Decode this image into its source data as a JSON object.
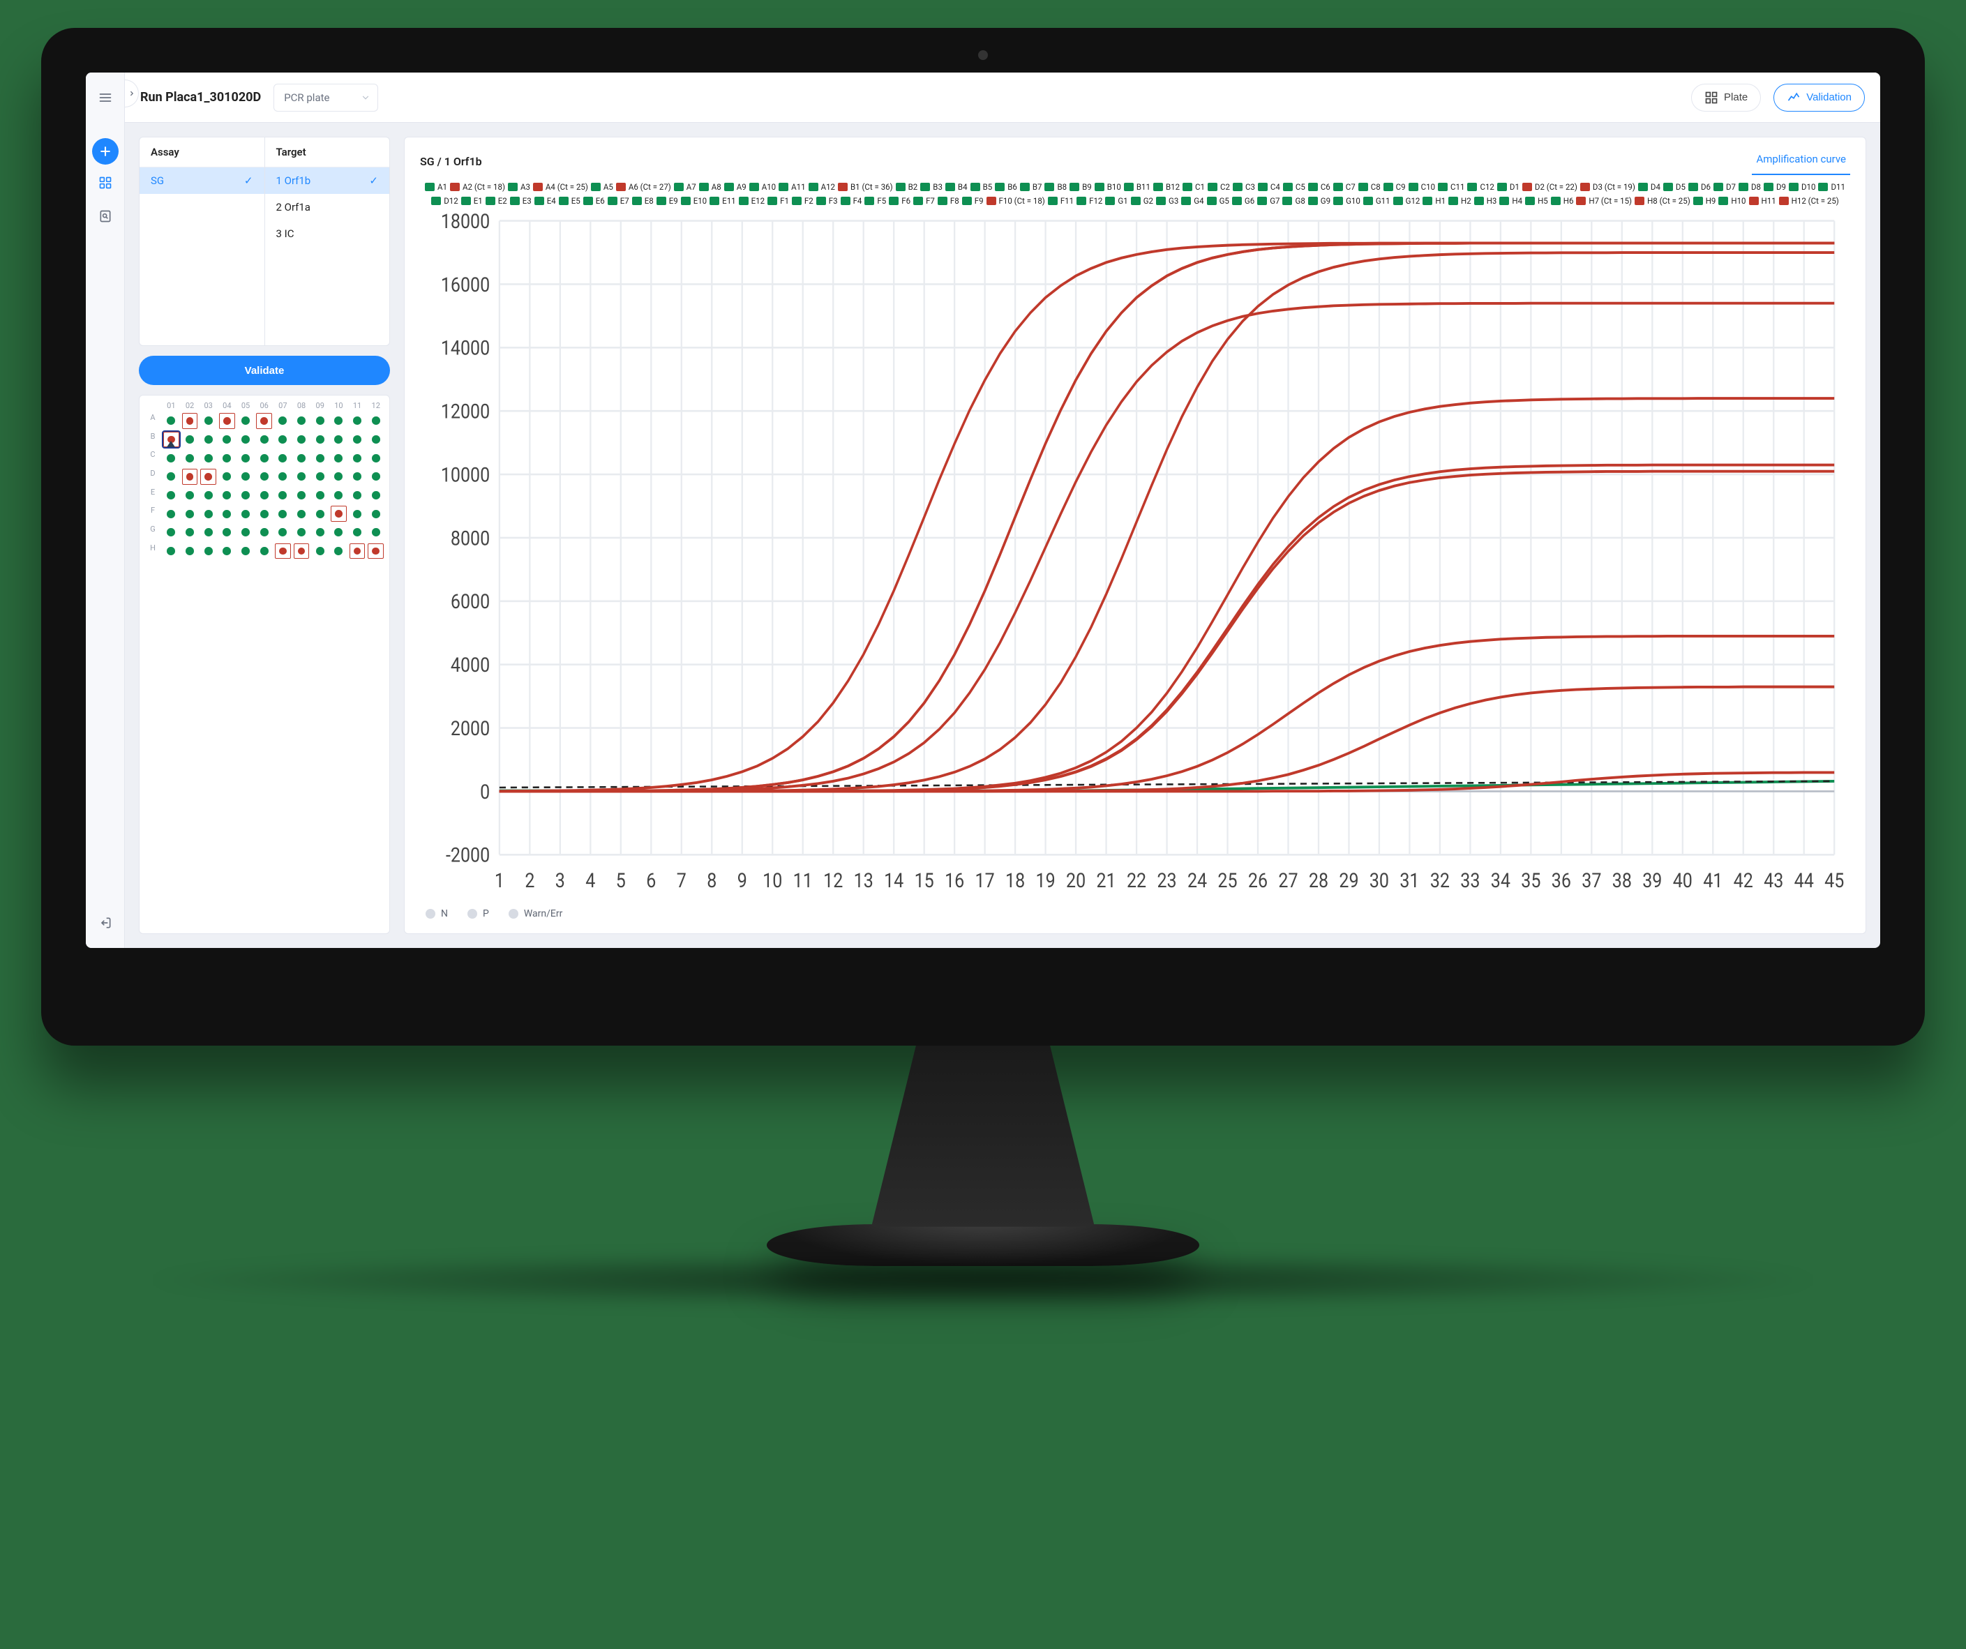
{
  "colors": {
    "accent": "#1f87ff",
    "positive": "#c0392b",
    "negative": "#0e8f52",
    "page_bg": "#eef0f5",
    "panel_border": "#e3e6ee",
    "grid_line": "#e8ebef",
    "text_muted": "#6b7280",
    "monitor_bezel": "#111111",
    "outer_bg": "#2a6b3d"
  },
  "header": {
    "title": "Run Placa1_301020D",
    "pcr_select_label": "PCR plate",
    "plate_btn": "Plate",
    "validation_btn": "Validation"
  },
  "sidebar": {
    "menu_icon": "hamburger",
    "items": [
      {
        "name": "add",
        "icon": "plus",
        "primary": true
      },
      {
        "name": "plates",
        "icon": "grid"
      },
      {
        "name": "search",
        "icon": "search-doc"
      }
    ],
    "bottom": {
      "name": "exit",
      "icon": "exit"
    }
  },
  "assay": {
    "header": "Assay",
    "options": [
      {
        "label": "SG",
        "selected": true
      }
    ]
  },
  "target": {
    "header": "Target",
    "options": [
      {
        "label": "1 Orf1b",
        "selected": true
      },
      {
        "label": "2 Orf1a",
        "selected": false
      },
      {
        "label": "3 IC",
        "selected": false
      }
    ]
  },
  "validate_btn": "Validate",
  "plate": {
    "rows": [
      "A",
      "B",
      "C",
      "D",
      "E",
      "F",
      "G",
      "H"
    ],
    "cols": [
      "01",
      "02",
      "03",
      "04",
      "05",
      "06",
      "07",
      "08",
      "09",
      "10",
      "11",
      "12"
    ],
    "positive_wells": [
      "A2",
      "A4",
      "A6",
      "B1",
      "D2",
      "D3",
      "F10",
      "H7",
      "H8",
      "H11",
      "H12"
    ],
    "warn_wells": [
      "B1"
    ],
    "selected_well": "B1"
  },
  "chart": {
    "title": "SG / 1 Orf1b",
    "tab_label": "Amplification curve",
    "ylim": [
      -2000,
      18000
    ],
    "ytick_step": 2000,
    "xlim": [
      1,
      45
    ],
    "xtick_step": 1,
    "bg": "#ffffff",
    "positives": [
      {
        "well": "A2",
        "ct": 18,
        "amp": 17300
      },
      {
        "well": "A4",
        "ct": 25,
        "amp": 10300
      },
      {
        "well": "A6",
        "ct": 27,
        "amp": 4900
      },
      {
        "well": "B1",
        "ct": 36,
        "amp": 600
      },
      {
        "well": "D2",
        "ct": 22,
        "amp": 17000
      },
      {
        "well": "D3",
        "ct": 19,
        "amp": 15400
      },
      {
        "well": "F10",
        "ct": 18,
        "amp": 17300
      },
      {
        "well": "H7",
        "ct": 15,
        "amp": 17300
      },
      {
        "well": "H8",
        "ct": 25,
        "amp": 12400
      },
      {
        "well": "H11",
        "ct": 30,
        "amp": 3300
      },
      {
        "well": "H12",
        "ct": 25,
        "amp": 10100
      }
    ]
  },
  "legend_wells": [
    {
      "id": "A1",
      "s": "n"
    },
    {
      "id": "A2",
      "s": "p",
      "ct": 18
    },
    {
      "id": "A3",
      "s": "n"
    },
    {
      "id": "A4",
      "s": "p",
      "ct": 25
    },
    {
      "id": "A5",
      "s": "n"
    },
    {
      "id": "A6",
      "s": "p",
      "ct": 27
    },
    {
      "id": "A7",
      "s": "n"
    },
    {
      "id": "A8",
      "s": "n"
    },
    {
      "id": "A9",
      "s": "n"
    },
    {
      "id": "A10",
      "s": "n"
    },
    {
      "id": "A11",
      "s": "n"
    },
    {
      "id": "A12",
      "s": "n"
    },
    {
      "id": "B1",
      "s": "p",
      "ct": 36
    },
    {
      "id": "B2",
      "s": "n"
    },
    {
      "id": "B3",
      "s": "n"
    },
    {
      "id": "B4",
      "s": "n"
    },
    {
      "id": "B5",
      "s": "n"
    },
    {
      "id": "B6",
      "s": "n"
    },
    {
      "id": "B7",
      "s": "n"
    },
    {
      "id": "B8",
      "s": "n"
    },
    {
      "id": "B9",
      "s": "n"
    },
    {
      "id": "B10",
      "s": "n"
    },
    {
      "id": "B11",
      "s": "n"
    },
    {
      "id": "B12",
      "s": "n"
    },
    {
      "id": "C1",
      "s": "n"
    },
    {
      "id": "C2",
      "s": "n"
    },
    {
      "id": "C3",
      "s": "n"
    },
    {
      "id": "C4",
      "s": "n"
    },
    {
      "id": "C5",
      "s": "n"
    },
    {
      "id": "C6",
      "s": "n"
    },
    {
      "id": "C7",
      "s": "n"
    },
    {
      "id": "C8",
      "s": "n"
    },
    {
      "id": "C9",
      "s": "n"
    },
    {
      "id": "C10",
      "s": "n"
    },
    {
      "id": "C11",
      "s": "n"
    },
    {
      "id": "C12",
      "s": "n"
    },
    {
      "id": "D1",
      "s": "n"
    },
    {
      "id": "D2",
      "s": "p",
      "ct": 22
    },
    {
      "id": "D3",
      "s": "p",
      "ct": 19
    },
    {
      "id": "D4",
      "s": "n"
    },
    {
      "id": "D5",
      "s": "n"
    },
    {
      "id": "D6",
      "s": "n"
    },
    {
      "id": "D7",
      "s": "n"
    },
    {
      "id": "D8",
      "s": "n"
    },
    {
      "id": "D9",
      "s": "n"
    },
    {
      "id": "D10",
      "s": "n"
    },
    {
      "id": "D11",
      "s": "n"
    },
    {
      "id": "D12",
      "s": "n"
    },
    {
      "id": "E1",
      "s": "n"
    },
    {
      "id": "E2",
      "s": "n"
    },
    {
      "id": "E3",
      "s": "n"
    },
    {
      "id": "E4",
      "s": "n"
    },
    {
      "id": "E5",
      "s": "n"
    },
    {
      "id": "E6",
      "s": "n"
    },
    {
      "id": "E7",
      "s": "n"
    },
    {
      "id": "E8",
      "s": "n"
    },
    {
      "id": "E9",
      "s": "n"
    },
    {
      "id": "E10",
      "s": "n"
    },
    {
      "id": "E11",
      "s": "n"
    },
    {
      "id": "E12",
      "s": "n"
    },
    {
      "id": "F1",
      "s": "n"
    },
    {
      "id": "F2",
      "s": "n"
    },
    {
      "id": "F3",
      "s": "n"
    },
    {
      "id": "F4",
      "s": "n"
    },
    {
      "id": "F5",
      "s": "n"
    },
    {
      "id": "F6",
      "s": "n"
    },
    {
      "id": "F7",
      "s": "n"
    },
    {
      "id": "F8",
      "s": "n"
    },
    {
      "id": "F9",
      "s": "n"
    },
    {
      "id": "F10",
      "s": "p",
      "ct": 18
    },
    {
      "id": "F11",
      "s": "n"
    },
    {
      "id": "F12",
      "s": "n"
    },
    {
      "id": "G1",
      "s": "n"
    },
    {
      "id": "G2",
      "s": "n"
    },
    {
      "id": "G3",
      "s": "n"
    },
    {
      "id": "G4",
      "s": "n"
    },
    {
      "id": "G5",
      "s": "n"
    },
    {
      "id": "G6",
      "s": "n"
    },
    {
      "id": "G7",
      "s": "n"
    },
    {
      "id": "G8",
      "s": "n"
    },
    {
      "id": "G9",
      "s": "n"
    },
    {
      "id": "G10",
      "s": "n"
    },
    {
      "id": "G11",
      "s": "n"
    },
    {
      "id": "G12",
      "s": "n"
    },
    {
      "id": "H1",
      "s": "n"
    },
    {
      "id": "H2",
      "s": "n"
    },
    {
      "id": "H3",
      "s": "n"
    },
    {
      "id": "H4",
      "s": "n"
    },
    {
      "id": "H5",
      "s": "n"
    },
    {
      "id": "H6",
      "s": "n"
    },
    {
      "id": "H7",
      "s": "p",
      "ct": 15
    },
    {
      "id": "H8",
      "s": "p",
      "ct": 25
    },
    {
      "id": "H9",
      "s": "n"
    },
    {
      "id": "H10",
      "s": "n"
    },
    {
      "id": "H11",
      "s": "p"
    },
    {
      "id": "H12",
      "s": "p",
      "ct": 25
    }
  ],
  "footer_legend": [
    {
      "label": "N"
    },
    {
      "label": "P"
    },
    {
      "label": "Warn/Err"
    }
  ]
}
